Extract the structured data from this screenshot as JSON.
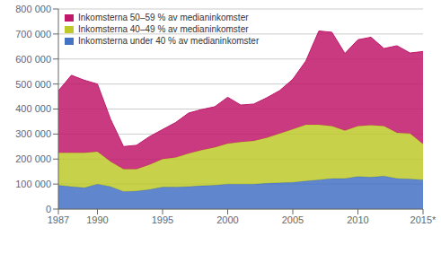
{
  "chart_data": {
    "type": "area",
    "stacked": true,
    "grid": true,
    "legend": "upper left",
    "x": [
      1987,
      1988,
      1989,
      1990,
      1991,
      1992,
      1993,
      1994,
      1995,
      1996,
      1997,
      1998,
      1999,
      2000,
      2001,
      2002,
      2003,
      2004,
      2005,
      2006,
      2007,
      2008,
      2009,
      2010,
      2011,
      2012,
      2013,
      2014,
      2015
    ],
    "series": [
      {
        "name": "Inkomsterna under 40 % av medianinkomster",
        "color": "#4472c4",
        "values": [
          95000,
          90000,
          85000,
          100000,
          90000,
          70000,
          72000,
          78000,
          88000,
          88000,
          90000,
          93000,
          95000,
          100000,
          100000,
          100000,
          103000,
          105000,
          107000,
          112000,
          117000,
          122000,
          122000,
          130000,
          127000,
          132000,
          122000,
          120000,
          117000
        ]
      },
      {
        "name": "Inkomsterna 40–49 % av medianinkomster",
        "color": "#bec92a",
        "values": [
          130000,
          135000,
          140000,
          130000,
          100000,
          90000,
          88000,
          100000,
          112000,
          118000,
          132000,
          143000,
          152000,
          162000,
          168000,
          173000,
          182000,
          197000,
          212000,
          225000,
          220000,
          210000,
          192000,
          202000,
          208000,
          200000,
          183000,
          182000,
          143000
        ]
      },
      {
        "name": "Inkomsterna 50–59 % av medianinkomster",
        "color": "#c0186a",
        "values": [
          248000,
          310000,
          290000,
          270000,
          170000,
          90000,
          95000,
          112000,
          118000,
          140000,
          162000,
          162000,
          162000,
          185000,
          148000,
          147000,
          160000,
          172000,
          200000,
          255000,
          375000,
          375000,
          308000,
          345000,
          352000,
          310000,
          348000,
          322000,
          370000
        ]
      }
    ],
    "xlim": [
      1987,
      2015
    ],
    "xticks": [
      1987,
      1990,
      1995,
      2000,
      2005,
      2010,
      {
        "value": 2015,
        "label": "2015*"
      }
    ],
    "ylim": [
      0,
      800000
    ],
    "yticks": [
      0,
      {
        "value": 100000,
        "label": "100 000"
      },
      {
        "value": 200000,
        "label": "200 000"
      },
      {
        "value": 300000,
        "label": "300 000"
      },
      {
        "value": 400000,
        "label": "400 000"
      },
      {
        "value": 500000,
        "label": "500 000"
      },
      {
        "value": 600000,
        "label": "600 000"
      },
      {
        "value": 700000,
        "label": "700 000"
      },
      {
        "value": 800000,
        "label": "800 000"
      }
    ]
  }
}
